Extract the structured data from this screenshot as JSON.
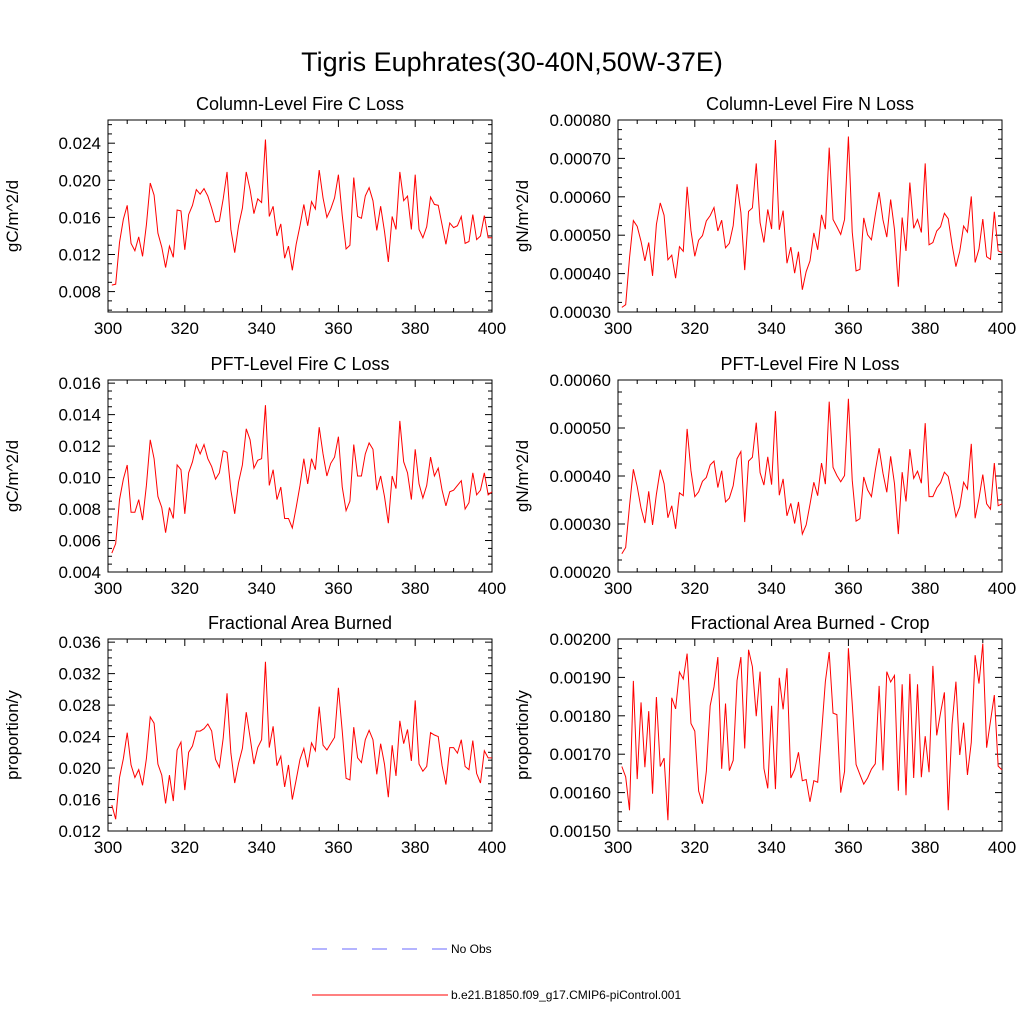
{
  "title": "Tigris Euphrates(30-40N,50W-37E)",
  "colors": {
    "model": "#ff0000",
    "obs": "#6a6aff",
    "axis": "#000000"
  },
  "legend": {
    "obs_label": "No Obs",
    "model_label": "b.e21.B1850.f09_g17.CMIP6-piControl.001"
  },
  "chart_data": [
    {
      "type": "line",
      "title": "Column-Level Fire C Loss",
      "ylabel": "gC/m^2/d",
      "xlim": [
        300,
        400
      ],
      "ylim": [
        0.0058,
        0.0265
      ],
      "xticks": [
        300,
        320,
        340,
        360,
        380,
        400
      ],
      "xtick_labels": [
        "300",
        "320",
        "340",
        "360",
        "380",
        "400"
      ],
      "yticks": [
        0.008,
        0.012,
        0.016,
        0.02,
        0.024
      ],
      "ytick_labels": [
        "0.008",
        "0.012",
        "0.016",
        "0.020",
        "0.024"
      ],
      "x_start": 301,
      "series": [
        {
          "name": "b.e21.B1850.f09_g17.CMIP6-piControl.001",
          "values": [
            0.0087,
            0.0088,
            0.0133,
            0.0158,
            0.0173,
            0.0132,
            0.0124,
            0.0139,
            0.0118,
            0.0152,
            0.0197,
            0.0184,
            0.0143,
            0.0128,
            0.0106,
            0.0129,
            0.0117,
            0.0168,
            0.0167,
            0.0125,
            0.0163,
            0.0173,
            0.019,
            0.0185,
            0.0191,
            0.0183,
            0.017,
            0.0155,
            0.0156,
            0.018,
            0.0209,
            0.0147,
            0.0122,
            0.0151,
            0.017,
            0.0209,
            0.019,
            0.0164,
            0.018,
            0.0176,
            0.0244,
            0.0161,
            0.0172,
            0.014,
            0.0153,
            0.0116,
            0.0129,
            0.0103,
            0.0131,
            0.0151,
            0.0174,
            0.0151,
            0.0177,
            0.0169,
            0.0211,
            0.0181,
            0.016,
            0.0169,
            0.0181,
            0.0206,
            0.0162,
            0.0126,
            0.013,
            0.0203,
            0.0161,
            0.0159,
            0.0183,
            0.0192,
            0.0178,
            0.0146,
            0.0172,
            0.0145,
            0.0112,
            0.0161,
            0.0147,
            0.0209,
            0.0178,
            0.0183,
            0.0147,
            0.0206,
            0.0147,
            0.0138,
            0.015,
            0.0182,
            0.0174,
            0.0173,
            0.0152,
            0.0131,
            0.0154,
            0.0149,
            0.0151,
            0.0161,
            0.0132,
            0.0134,
            0.0163,
            0.0136,
            0.014,
            0.0162,
            0.0138,
            0.0138
          ]
        }
      ]
    },
    {
      "type": "line",
      "title": "Column-Level Fire N Loss",
      "ylabel": "gN/m^2/d",
      "xlim": [
        300,
        400
      ],
      "ylim": [
        0.0003,
        0.0008
      ],
      "xticks": [
        300,
        320,
        340,
        360,
        380,
        400
      ],
      "xtick_labels": [
        "300",
        "320",
        "340",
        "360",
        "380",
        "400"
      ],
      "yticks": [
        0.0003,
        0.0004,
        0.0005,
        0.0006,
        0.0007,
        0.0008
      ],
      "ytick_labels": [
        "0.00030",
        "0.00040",
        "0.00050",
        "0.00060",
        "0.00070",
        "0.00080"
      ],
      "x_start": 301,
      "series": [
        {
          "name": "b.e21.B1850.f09_g17.CMIP6-piControl.001",
          "values": [
            0.000312,
            0.000319,
            0.000441,
            0.000538,
            0.000523,
            0.000484,
            0.000433,
            0.000481,
            0.000394,
            0.000528,
            0.000584,
            0.000552,
            0.000436,
            0.000448,
            0.000388,
            0.00047,
            0.000458,
            0.000626,
            0.000512,
            0.000445,
            0.000487,
            0.000499,
            0.000537,
            0.000551,
            0.000572,
            0.000511,
            0.000539,
            0.000467,
            0.000479,
            0.000525,
            0.000633,
            0.000559,
            0.000409,
            0.000562,
            0.000571,
            0.000687,
            0.000533,
            0.000481,
            0.000567,
            0.000516,
            0.000748,
            0.000514,
            0.000564,
            0.000427,
            0.000469,
            0.000401,
            0.000457,
            0.000358,
            0.000405,
            0.000433,
            0.000506,
            0.000462,
            0.000553,
            0.000516,
            0.000728,
            0.000541,
            0.000522,
            0.000502,
            0.000541,
            0.000757,
            0.000508,
            0.000407,
            0.000411,
            0.000545,
            0.000501,
            0.000488,
            0.000553,
            0.000612,
            0.00054,
            0.000495,
            0.000593,
            0.000515,
            0.000366,
            0.000546,
            0.000459,
            0.000637,
            0.000518,
            0.000541,
            0.000507,
            0.000687,
            0.000475,
            0.000481,
            0.000511,
            0.000522,
            0.000557,
            0.000543,
            0.000475,
            0.000418,
            0.000458,
            0.000524,
            0.000508,
            0.000601,
            0.000429,
            0.000464,
            0.000542,
            0.000444,
            0.000437,
            0.000561,
            0.000459,
            0.000455
          ]
        }
      ]
    },
    {
      "type": "line",
      "title": "PFT-Level Fire C Loss",
      "ylabel": "gC/m^2/d",
      "xlim": [
        300,
        400
      ],
      "ylim": [
        0.004,
        0.0162
      ],
      "xticks": [
        300,
        320,
        340,
        360,
        380,
        400
      ],
      "xtick_labels": [
        "300",
        "320",
        "340",
        "360",
        "380",
        "400"
      ],
      "yticks": [
        0.004,
        0.006,
        0.008,
        0.01,
        0.012,
        0.014,
        0.016
      ],
      "ytick_labels": [
        "0.004",
        "0.006",
        "0.008",
        "0.010",
        "0.012",
        "0.014",
        "0.016"
      ],
      "x_start": 301,
      "series": [
        {
          "name": "b.e21.B1850.f09_g17.CMIP6-piControl.001",
          "values": [
            0.0052,
            0.0058,
            0.0086,
            0.0099,
            0.0108,
            0.0078,
            0.0078,
            0.0086,
            0.0073,
            0.0095,
            0.0124,
            0.0112,
            0.0088,
            0.0081,
            0.0065,
            0.0081,
            0.0074,
            0.0108,
            0.0105,
            0.0077,
            0.0103,
            0.011,
            0.0121,
            0.0115,
            0.0121,
            0.0112,
            0.0107,
            0.0099,
            0.0103,
            0.0117,
            0.0116,
            0.0092,
            0.0077,
            0.0097,
            0.0108,
            0.0131,
            0.0124,
            0.0106,
            0.0111,
            0.0112,
            0.0146,
            0.0095,
            0.0105,
            0.0086,
            0.0094,
            0.0074,
            0.0074,
            0.0068,
            0.0081,
            0.0095,
            0.0112,
            0.0096,
            0.0112,
            0.0105,
            0.0132,
            0.0115,
            0.0101,
            0.0109,
            0.0113,
            0.0126,
            0.0094,
            0.0079,
            0.0085,
            0.0121,
            0.0101,
            0.0101,
            0.0115,
            0.0122,
            0.0118,
            0.0092,
            0.0101,
            0.0088,
            0.0071,
            0.0101,
            0.0093,
            0.0136,
            0.011,
            0.0103,
            0.0086,
            0.0118,
            0.0096,
            0.0087,
            0.0095,
            0.0113,
            0.0101,
            0.0106,
            0.0092,
            0.0082,
            0.0091,
            0.0092,
            0.0095,
            0.0098,
            0.008,
            0.0084,
            0.0103,
            0.0089,
            0.0092,
            0.0103,
            0.0089,
            0.0091
          ]
        }
      ]
    },
    {
      "type": "line",
      "title": "PFT-Level Fire N Loss",
      "ylabel": "gN/m^2/d",
      "xlim": [
        300,
        400
      ],
      "ylim": [
        0.0002,
        0.0006
      ],
      "xticks": [
        300,
        320,
        340,
        360,
        380,
        400
      ],
      "xtick_labels": [
        "300",
        "320",
        "340",
        "360",
        "380",
        "400"
      ],
      "yticks": [
        0.0002,
        0.0003,
        0.0004,
        0.0005,
        0.0006
      ],
      "ytick_labels": [
        "0.00020",
        "0.00030",
        "0.00040",
        "0.00050",
        "0.00060"
      ],
      "x_start": 301,
      "series": [
        {
          "name": "b.e21.B1850.f09_g17.CMIP6-piControl.001",
          "values": [
            0.000238,
            0.000251,
            0.000338,
            0.000414,
            0.000378,
            0.000333,
            0.000302,
            0.000368,
            0.000298,
            0.000362,
            0.000413,
            0.000384,
            0.000313,
            0.000338,
            0.00029,
            0.000365,
            0.000359,
            0.000498,
            0.000411,
            0.000357,
            0.000367,
            0.000389,
            0.000397,
            0.000423,
            0.000431,
            0.000376,
            0.000411,
            0.000346,
            0.000354,
            0.00038,
            0.000436,
            0.000451,
            0.000304,
            0.000431,
            0.000439,
            0.000511,
            0.000407,
            0.000381,
            0.00044,
            0.000382,
            0.000535,
            0.00036,
            0.000394,
            0.000317,
            0.000343,
            0.000301,
            0.000346,
            0.000279,
            0.000298,
            0.000341,
            0.000387,
            0.000359,
            0.000427,
            0.000383,
            0.000555,
            0.000418,
            0.000401,
            0.000388,
            0.000401,
            0.000561,
            0.000391,
            0.000306,
            0.000311,
            0.000398,
            0.000371,
            0.000357,
            0.000411,
            0.000458,
            0.000406,
            0.000366,
            0.000441,
            0.000384,
            0.000279,
            0.000408,
            0.000347,
            0.000456,
            0.000395,
            0.00041,
            0.000385,
            0.00051,
            0.000357,
            0.000357,
            0.000375,
            0.000386,
            0.000408,
            0.000399,
            0.00036,
            0.000315,
            0.000336,
            0.000387,
            0.000373,
            0.000467,
            0.000312,
            0.000353,
            0.000403,
            0.000342,
            0.000331,
            0.000427,
            0.000338,
            0.000342
          ]
        }
      ]
    },
    {
      "type": "line",
      "title": "Fractional Area Burned",
      "ylabel": "proportion/y",
      "xlim": [
        300,
        400
      ],
      "ylim": [
        0.012,
        0.0364
      ],
      "xticks": [
        300,
        320,
        340,
        360,
        380,
        400
      ],
      "xtick_labels": [
        "300",
        "320",
        "340",
        "360",
        "380",
        "400"
      ],
      "yticks": [
        0.012,
        0.016,
        0.02,
        0.024,
        0.028,
        0.032,
        0.036
      ],
      "ytick_labels": [
        "0.012",
        "0.016",
        "0.020",
        "0.024",
        "0.028",
        "0.032",
        "0.036"
      ],
      "x_start": 301,
      "series": [
        {
          "name": "b.e21.B1850.f09_g17.CMIP6-piControl.001",
          "values": [
            0.0153,
            0.0135,
            0.0188,
            0.0212,
            0.0245,
            0.0204,
            0.0188,
            0.0198,
            0.0178,
            0.0212,
            0.0265,
            0.0257,
            0.0205,
            0.0191,
            0.0155,
            0.0191,
            0.0158,
            0.0223,
            0.0233,
            0.0172,
            0.022,
            0.0228,
            0.0247,
            0.0247,
            0.025,
            0.0256,
            0.0247,
            0.0211,
            0.0201,
            0.0238,
            0.0295,
            0.0219,
            0.0181,
            0.0206,
            0.0225,
            0.0271,
            0.0239,
            0.0205,
            0.0226,
            0.0236,
            0.0335,
            0.0226,
            0.0253,
            0.0203,
            0.0215,
            0.0176,
            0.0204,
            0.016,
            0.0185,
            0.0211,
            0.0225,
            0.0201,
            0.0232,
            0.0222,
            0.0278,
            0.0229,
            0.0223,
            0.0231,
            0.0239,
            0.0302,
            0.0247,
            0.0187,
            0.0185,
            0.0252,
            0.0213,
            0.0207,
            0.0236,
            0.0248,
            0.0236,
            0.0192,
            0.0231,
            0.0205,
            0.0163,
            0.0229,
            0.019,
            0.026,
            0.0231,
            0.0249,
            0.0209,
            0.0286,
            0.0205,
            0.0196,
            0.0202,
            0.0245,
            0.0242,
            0.024,
            0.0203,
            0.0179,
            0.0226,
            0.0226,
            0.0219,
            0.0236,
            0.0202,
            0.0198,
            0.0235,
            0.0193,
            0.0181,
            0.0222,
            0.0213,
            0.0213
          ]
        }
      ]
    },
    {
      "type": "line",
      "title": "Fractional Area Burned - Crop",
      "ylabel": "proportion/y",
      "xlim": [
        300,
        400
      ],
      "ylim": [
        0.0015,
        0.002
      ],
      "xticks": [
        300,
        320,
        340,
        360,
        380,
        400
      ],
      "xtick_labels": [
        "300",
        "320",
        "340",
        "360",
        "380",
        "400"
      ],
      "yticks": [
        0.0015,
        0.0016,
        0.0017,
        0.0018,
        0.0019,
        0.002
      ],
      "ytick_labels": [
        "0.00150",
        "0.00160",
        "0.00170",
        "0.00180",
        "0.00190",
        "0.00200"
      ],
      "x_start": 301,
      "series": [
        {
          "name": "b.e21.B1850.f09_g17.CMIP6-piControl.001",
          "values": [
            0.001668,
            0.001641,
            0.001554,
            0.001891,
            0.001635,
            0.001835,
            0.001666,
            0.001812,
            0.001597,
            0.001849,
            0.001668,
            0.00169,
            0.001528,
            0.001847,
            0.001818,
            0.001914,
            0.001896,
            0.001962,
            0.00178,
            0.00176,
            0.001604,
            0.001571,
            0.001655,
            0.001826,
            0.001875,
            0.001953,
            0.001662,
            0.001832,
            0.001657,
            0.001684,
            0.001892,
            0.001953,
            0.001715,
            0.001972,
            0.001928,
            0.001799,
            0.001915,
            0.001663,
            0.001611,
            0.001826,
            0.001609,
            0.001899,
            0.001817,
            0.001924,
            0.001638,
            0.00166,
            0.001705,
            0.001631,
            0.001634,
            0.001576,
            0.001631,
            0.001627,
            0.001753,
            0.001889,
            0.001966,
            0.001807,
            0.001803,
            0.0016,
            0.001655,
            0.001976,
            0.001831,
            0.001673,
            0.001647,
            0.001622,
            0.001638,
            0.001661,
            0.001675,
            0.001878,
            0.001658,
            0.001915,
            0.001888,
            0.001905,
            0.001605,
            0.001882,
            0.001593,
            0.001909,
            0.001638,
            0.001882,
            0.00164,
            0.001747,
            0.001653,
            0.00193,
            0.001749,
            0.001808,
            0.001861,
            0.001554,
            0.001778,
            0.001889,
            0.001698,
            0.001782,
            0.001646,
            0.001731,
            0.001958,
            0.001884,
            0.001988,
            0.001717,
            0.001786,
            0.001854,
            0.001669,
            0.001659
          ]
        }
      ]
    }
  ]
}
